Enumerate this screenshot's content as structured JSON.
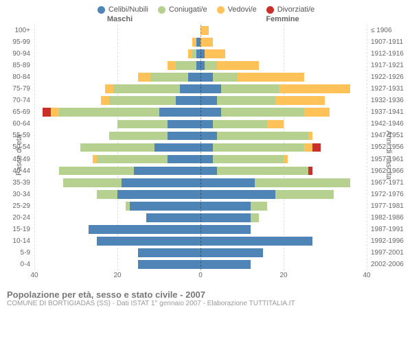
{
  "type": "population-pyramid",
  "legend": [
    {
      "label": "Celibi/Nubili",
      "color": "#4f84b6"
    },
    {
      "label": "Coniugati/e",
      "color": "#b6d090"
    },
    {
      "label": "Vedovi/e",
      "color": "#ffc259"
    },
    {
      "label": "Divorziati/e",
      "color": "#c9302c"
    }
  ],
  "axis": {
    "left_title": "Fasce di età",
    "right_title": "Anni di nascita",
    "male_header": "Maschi",
    "female_header": "Femmine",
    "xmax": 40,
    "xticks": [
      0,
      20,
      40
    ],
    "gridline_color": "rgba(0,0,0,0.12)",
    "centerline_color": "rgba(0,0,0,0.35)"
  },
  "footer": {
    "title": "Popolazione per età, sesso e stato civile - 2007",
    "subtitle": "COMUNE DI BORTIGIADAS (SS) - Dati ISTAT 1° gennaio 2007 - Elaborazione TUTTITALIA.IT"
  },
  "rows": [
    {
      "age": "100+",
      "birth": "≤ 1906",
      "m": {
        "cel": 0,
        "con": 0,
        "ved": 0,
        "div": 0
      },
      "f": {
        "cel": 0,
        "con": 0,
        "ved": 2,
        "div": 0
      }
    },
    {
      "age": "95-99",
      "birth": "1907-1911",
      "m": {
        "cel": 1,
        "con": 0,
        "ved": 1,
        "div": 0
      },
      "f": {
        "cel": 0,
        "con": 0,
        "ved": 3,
        "div": 0
      }
    },
    {
      "age": "90-94",
      "birth": "1912-1916",
      "m": {
        "cel": 1,
        "con": 1,
        "ved": 1,
        "div": 0
      },
      "f": {
        "cel": 1,
        "con": 0,
        "ved": 5,
        "div": 0
      }
    },
    {
      "age": "85-89",
      "birth": "1917-1921",
      "m": {
        "cel": 1,
        "con": 5,
        "ved": 2,
        "div": 0
      },
      "f": {
        "cel": 1,
        "con": 3,
        "ved": 10,
        "div": 0
      }
    },
    {
      "age": "80-84",
      "birth": "1922-1926",
      "m": {
        "cel": 3,
        "con": 9,
        "ved": 3,
        "div": 0
      },
      "f": {
        "cel": 3,
        "con": 6,
        "ved": 16,
        "div": 0
      }
    },
    {
      "age": "75-79",
      "birth": "1927-1931",
      "m": {
        "cel": 5,
        "con": 16,
        "ved": 2,
        "div": 0
      },
      "f": {
        "cel": 5,
        "con": 14,
        "ved": 17,
        "div": 0
      }
    },
    {
      "age": "70-74",
      "birth": "1932-1936",
      "m": {
        "cel": 6,
        "con": 16,
        "ved": 2,
        "div": 0
      },
      "f": {
        "cel": 4,
        "con": 14,
        "ved": 12,
        "div": 0
      }
    },
    {
      "age": "65-69",
      "birth": "1937-1941",
      "m": {
        "cel": 10,
        "con": 24,
        "ved": 2,
        "div": 2
      },
      "f": {
        "cel": 5,
        "con": 20,
        "ved": 6,
        "div": 0
      }
    },
    {
      "age": "60-64",
      "birth": "1942-1946",
      "m": {
        "cel": 8,
        "con": 12,
        "ved": 0,
        "div": 0
      },
      "f": {
        "cel": 3,
        "con": 13,
        "ved": 4,
        "div": 0
      }
    },
    {
      "age": "55-59",
      "birth": "1947-1951",
      "m": {
        "cel": 8,
        "con": 14,
        "ved": 0,
        "div": 0
      },
      "f": {
        "cel": 4,
        "con": 22,
        "ved": 1,
        "div": 0
      }
    },
    {
      "age": "50-54",
      "birth": "1952-1956",
      "m": {
        "cel": 11,
        "con": 18,
        "ved": 0,
        "div": 0
      },
      "f": {
        "cel": 3,
        "con": 22,
        "ved": 2,
        "div": 2
      }
    },
    {
      "age": "45-49",
      "birth": "1957-1961",
      "m": {
        "cel": 8,
        "con": 17,
        "ved": 1,
        "div": 0
      },
      "f": {
        "cel": 3,
        "con": 17,
        "ved": 1,
        "div": 0
      }
    },
    {
      "age": "40-44",
      "birth": "1962-1966",
      "m": {
        "cel": 16,
        "con": 18,
        "ved": 0,
        "div": 0
      },
      "f": {
        "cel": 4,
        "con": 22,
        "ved": 0,
        "div": 1
      }
    },
    {
      "age": "35-39",
      "birth": "1967-1971",
      "m": {
        "cel": 19,
        "con": 14,
        "ved": 0,
        "div": 0
      },
      "f": {
        "cel": 13,
        "con": 23,
        "ved": 0,
        "div": 0
      }
    },
    {
      "age": "30-34",
      "birth": "1972-1976",
      "m": {
        "cel": 20,
        "con": 5,
        "ved": 0,
        "div": 0
      },
      "f": {
        "cel": 18,
        "con": 14,
        "ved": 0,
        "div": 0
      }
    },
    {
      "age": "25-29",
      "birth": "1977-1981",
      "m": {
        "cel": 17,
        "con": 1,
        "ved": 0,
        "div": 0
      },
      "f": {
        "cel": 12,
        "con": 4,
        "ved": 0,
        "div": 0
      }
    },
    {
      "age": "20-24",
      "birth": "1982-1986",
      "m": {
        "cel": 13,
        "con": 0,
        "ved": 0,
        "div": 0
      },
      "f": {
        "cel": 12,
        "con": 2,
        "ved": 0,
        "div": 0
      }
    },
    {
      "age": "15-19",
      "birth": "1987-1991",
      "m": {
        "cel": 27,
        "con": 0,
        "ved": 0,
        "div": 0
      },
      "f": {
        "cel": 12,
        "con": 0,
        "ved": 0,
        "div": 0
      }
    },
    {
      "age": "10-14",
      "birth": "1992-1996",
      "m": {
        "cel": 25,
        "con": 0,
        "ved": 0,
        "div": 0
      },
      "f": {
        "cel": 27,
        "con": 0,
        "ved": 0,
        "div": 0
      }
    },
    {
      "age": "5-9",
      "birth": "1997-2001",
      "m": {
        "cel": 15,
        "con": 0,
        "ved": 0,
        "div": 0
      },
      "f": {
        "cel": 15,
        "con": 0,
        "ved": 0,
        "div": 0
      }
    },
    {
      "age": "0-4",
      "birth": "2002-2006",
      "m": {
        "cel": 15,
        "con": 0,
        "ved": 0,
        "div": 0
      },
      "f": {
        "cel": 12,
        "con": 0,
        "ved": 0,
        "div": 0
      }
    }
  ],
  "typography": {
    "legend_fontsize": 11,
    "axis_label_fontsize": 10,
    "axis_title_fontsize": 11,
    "footer_title_fontsize": 13,
    "footer_sub_fontsize": 10
  },
  "colors": {
    "background": "#ffffff",
    "text_muted": "#666666",
    "footer_title": "#777777",
    "footer_sub": "#999999"
  }
}
